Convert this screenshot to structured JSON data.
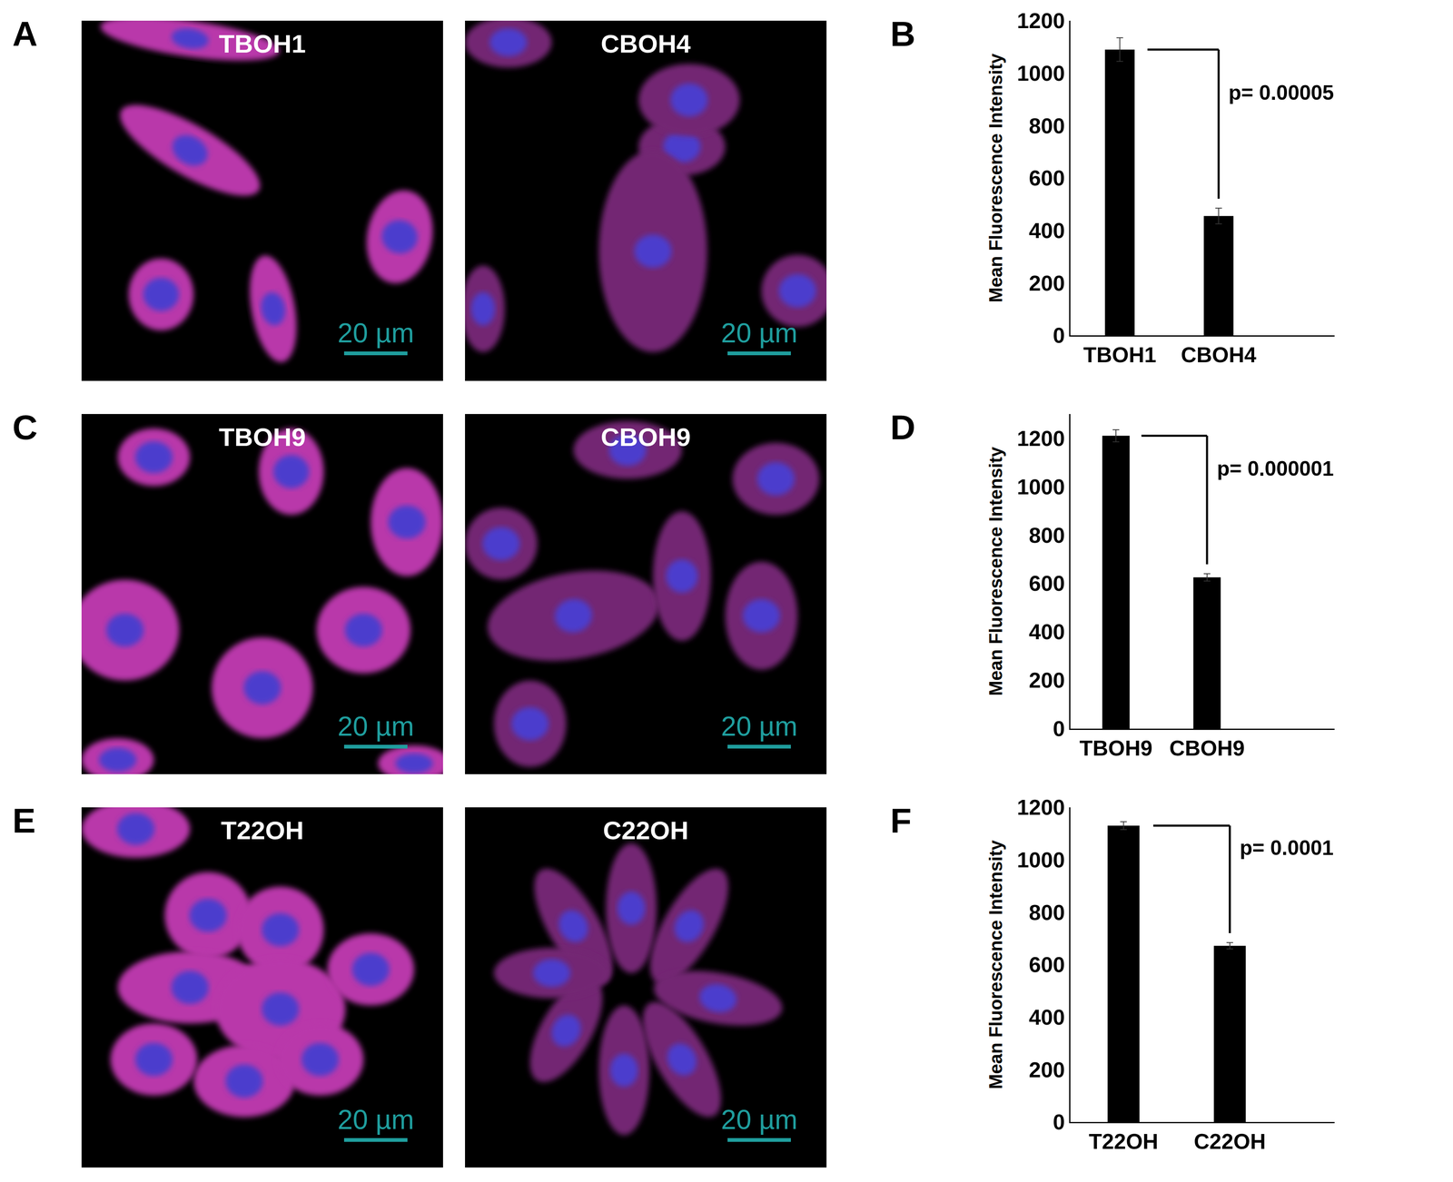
{
  "panels": [
    {
      "letter": "A",
      "images": [
        {
          "label": "TBOH1",
          "scale_bar": "20 µm"
        },
        {
          "label": "CBOH4",
          "scale_bar": "20 µm"
        }
      ]
    },
    {
      "letter": "C",
      "images": [
        {
          "label": "TBOH9",
          "scale_bar": "20 µm"
        },
        {
          "label": "CBOH9",
          "scale_bar": "20 µm"
        }
      ]
    },
    {
      "letter": "E",
      "images": [
        {
          "label": "T22OH",
          "scale_bar": "20 µm"
        },
        {
          "label": "C22OH",
          "scale_bar": "20 µm"
        }
      ]
    }
  ],
  "chart_data": [
    {
      "letter": "B",
      "type": "bar",
      "categories": [
        "TBOH1",
        "CBOH4"
      ],
      "values": [
        1090,
        455
      ],
      "errors": [
        45,
        30
      ],
      "color": "#000000",
      "ylabel": "Mean Fluorescence Intensity",
      "ylim": [
        0,
        1200
      ],
      "yticks": [
        0,
        200,
        400,
        600,
        800,
        1000,
        1200
      ],
      "grid": false,
      "annotation": "p= 0.00005"
    },
    {
      "letter": "D",
      "type": "bar",
      "categories": [
        "TBOH9",
        "CBOH9"
      ],
      "values": [
        1210,
        625
      ],
      "errors": [
        25,
        15
      ],
      "color": "#000000",
      "ylabel": "Mean Fluorescence Intensity",
      "ylim": [
        0,
        1300
      ],
      "yticks": [
        0,
        200,
        400,
        600,
        800,
        1000,
        1200
      ],
      "grid": false,
      "annotation": "p= 0.000001"
    },
    {
      "letter": "F",
      "type": "bar",
      "categories": [
        "T22OH",
        "C22OH"
      ],
      "values": [
        1130,
        672
      ],
      "errors": [
        15,
        12
      ],
      "color": "#000000",
      "ylabel": "Mean Fluorescence Intensity",
      "ylim": [
        0,
        1200
      ],
      "yticks": [
        0,
        200,
        400,
        600,
        800,
        1000,
        1200
      ],
      "grid": false,
      "annotation": "p= 0.0001"
    }
  ]
}
